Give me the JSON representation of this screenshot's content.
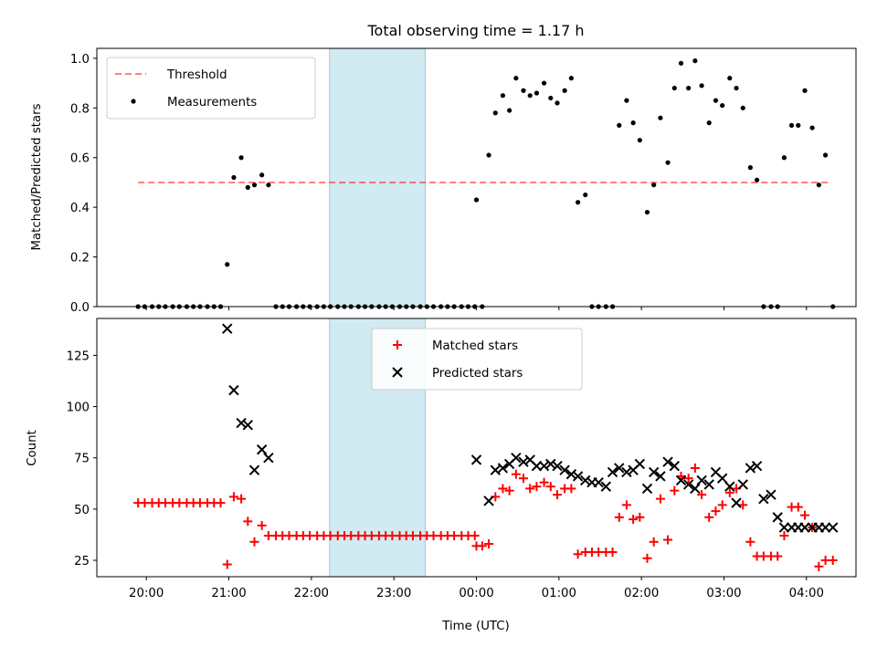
{
  "chart_data": [
    {
      "type": "scatter",
      "title": "Total observing time = 1.17 h",
      "xlabel": "",
      "ylabel": "Matched/Predicted stars",
      "xlim": [
        -0.6,
        8.6
      ],
      "ylim": [
        0,
        1.04
      ],
      "yticks": [
        0.0,
        0.2,
        0.4,
        0.6,
        0.8,
        1.0
      ],
      "ytick_labels": [
        "0.0",
        "0.2",
        "0.4",
        "0.6",
        "0.8",
        "1.0"
      ],
      "x_unit": "hours since 20:00 UTC",
      "highlight_span": {
        "x0": 2.22,
        "x1": 3.38,
        "color": "#add8e6"
      },
      "threshold": {
        "name": "Threshold",
        "y": 0.5,
        "x0": -0.1,
        "x1": 8.3,
        "color": "#ff0000"
      },
      "legend": {
        "placement": "upper left",
        "entries": [
          "Threshold",
          "Measurements"
        ]
      },
      "series": [
        {
          "name": "Measurements",
          "color": "#000000",
          "marker": "dot",
          "x": [
            -0.1,
            -0.02,
            0.07,
            0.15,
            0.23,
            0.32,
            0.4,
            0.49,
            0.57,
            0.65,
            0.74,
            0.82,
            0.9,
            0.98,
            1.06,
            1.15,
            1.23,
            1.31,
            1.4,
            1.48,
            1.57,
            1.65,
            1.73,
            1.82,
            1.9,
            1.98,
            2.07,
            2.15,
            2.23,
            2.32,
            2.4,
            2.48,
            2.57,
            2.65,
            2.73,
            2.82,
            2.9,
            2.98,
            3.07,
            3.15,
            3.23,
            3.32,
            3.4,
            3.48,
            3.57,
            3.65,
            3.73,
            3.82,
            3.9,
            3.98,
            4.0,
            4.07,
            4.15,
            4.23,
            4.32,
            4.4,
            4.48,
            4.57,
            4.65,
            4.73,
            4.82,
            4.9,
            4.98,
            5.07,
            5.15,
            5.23,
            5.32,
            5.4,
            5.48,
            5.57,
            5.65,
            5.73,
            5.82,
            5.9,
            5.98,
            6.07,
            6.15,
            6.23,
            6.32,
            6.4,
            6.48,
            6.57,
            6.65,
            6.73,
            6.82,
            6.9,
            6.98,
            7.07,
            7.15,
            7.23,
            7.32,
            7.4,
            7.48,
            7.57,
            7.65,
            7.73,
            7.82,
            7.9,
            7.98,
            8.07,
            8.15,
            8.23,
            8.32
          ],
          "y": [
            0.0,
            0.0,
            0.0,
            0.0,
            0.0,
            0.0,
            0.0,
            0.0,
            0.0,
            0.0,
            0.0,
            0.0,
            0.0,
            0.17,
            0.52,
            0.6,
            0.48,
            0.49,
            0.53,
            0.49,
            0.0,
            0.0,
            0.0,
            0.0,
            0.0,
            0.0,
            0.0,
            0.0,
            0.0,
            0.0,
            0.0,
            0.0,
            0.0,
            0.0,
            0.0,
            0.0,
            0.0,
            0.0,
            0.0,
            0.0,
            0.0,
            0.0,
            0.0,
            0.0,
            0.0,
            0.0,
            0.0,
            0.0,
            0.0,
            0.0,
            0.43,
            0.0,
            0.61,
            0.78,
            0.85,
            0.79,
            0.92,
            0.87,
            0.85,
            0.86,
            0.9,
            0.84,
            0.82,
            0.87,
            0.92,
            0.42,
            0.45,
            0.0,
            0.0,
            0.0,
            0.0,
            0.73,
            0.83,
            0.74,
            0.67,
            0.38,
            0.49,
            0.76,
            0.58,
            0.88,
            0.98,
            0.88,
            0.99,
            0.89,
            0.74,
            0.83,
            0.81,
            0.92,
            0.88,
            0.8,
            0.56,
            0.51,
            0.0,
            0.0,
            0.0,
            0.6,
            0.73,
            0.73,
            0.87,
            0.72,
            0.49,
            0.61,
            0.0
          ]
        }
      ]
    },
    {
      "type": "scatter",
      "title": "",
      "xlabel": "Time (UTC)",
      "ylabel": "Count",
      "xlim": [
        -0.6,
        8.6
      ],
      "ylim": [
        17,
        143
      ],
      "yticks": [
        25,
        50,
        75,
        100,
        125
      ],
      "ytick_labels": [
        "25",
        "50",
        "75",
        "100",
        "125"
      ],
      "xticks": [
        0,
        1,
        2,
        3,
        4,
        5,
        6,
        7,
        8
      ],
      "xtick_labels": [
        "20:00",
        "21:00",
        "22:00",
        "23:00",
        "00:00",
        "01:00",
        "02:00",
        "03:00",
        "04:00"
      ],
      "x_unit": "hours since 20:00 UTC",
      "highlight_span": {
        "x0": 2.22,
        "x1": 3.38,
        "color": "#add8e6"
      },
      "legend": {
        "placement": "upper center",
        "entries": [
          "Matched stars",
          "Predicted stars"
        ]
      },
      "series": [
        {
          "name": "Matched stars",
          "color": "#ff0000",
          "marker": "plus",
          "x": [
            -0.1,
            -0.02,
            0.07,
            0.15,
            0.23,
            0.32,
            0.4,
            0.49,
            0.57,
            0.65,
            0.74,
            0.82,
            0.9,
            0.98,
            1.06,
            1.15,
            1.23,
            1.31,
            1.4,
            1.48,
            1.57,
            1.65,
            1.73,
            1.82,
            1.9,
            1.98,
            2.07,
            2.15,
            2.23,
            2.32,
            2.4,
            2.48,
            2.57,
            2.65,
            2.73,
            2.82,
            2.9,
            2.98,
            3.07,
            3.15,
            3.23,
            3.32,
            3.4,
            3.48,
            3.57,
            3.65,
            3.73,
            3.82,
            3.9,
            3.98,
            4.0,
            4.07,
            4.15,
            4.23,
            4.32,
            4.4,
            4.48,
            4.57,
            4.65,
            4.73,
            4.82,
            4.9,
            4.98,
            5.07,
            5.15,
            5.23,
            5.32,
            5.4,
            5.48,
            5.57,
            5.65,
            5.73,
            5.82,
            5.9,
            5.98,
            6.07,
            6.15,
            6.23,
            6.32,
            6.4,
            6.48,
            6.57,
            6.65,
            6.73,
            6.82,
            6.9,
            6.98,
            7.07,
            7.15,
            7.23,
            7.32,
            7.4,
            7.48,
            7.57,
            7.65,
            7.73,
            7.82,
            7.9,
            7.98,
            8.07,
            8.15,
            8.23,
            8.32
          ],
          "y": [
            53,
            53,
            53,
            53,
            53,
            53,
            53,
            53,
            53,
            53,
            53,
            53,
            53,
            23,
            56,
            55,
            44,
            34,
            42,
            37,
            37,
            37,
            37,
            37,
            37,
            37,
            37,
            37,
            37,
            37,
            37,
            37,
            37,
            37,
            37,
            37,
            37,
            37,
            37,
            37,
            37,
            37,
            37,
            37,
            37,
            37,
            37,
            37,
            37,
            37,
            32,
            32,
            33,
            56,
            60,
            59,
            67,
            65,
            60,
            61,
            63,
            61,
            57,
            60,
            60,
            28,
            29,
            29,
            29,
            29,
            29,
            46,
            52,
            45,
            46,
            26,
            34,
            55,
            35,
            59,
            66,
            65,
            70,
            57,
            46,
            49,
            52,
            58,
            60,
            52,
            34,
            27,
            27,
            27,
            27,
            37,
            51,
            51,
            47,
            41,
            22,
            25,
            25
          ]
        },
        {
          "name": "Predicted stars",
          "color": "#000000",
          "marker": "x",
          "x": [
            0.98,
            1.06,
            1.15,
            1.23,
            1.31,
            1.4,
            1.48,
            4.0,
            4.15,
            4.23,
            4.32,
            4.4,
            4.48,
            4.57,
            4.65,
            4.73,
            4.82,
            4.9,
            4.98,
            5.07,
            5.15,
            5.23,
            5.32,
            5.4,
            5.48,
            5.57,
            5.65,
            5.73,
            5.82,
            5.9,
            5.98,
            6.07,
            6.15,
            6.23,
            6.32,
            6.4,
            6.48,
            6.57,
            6.65,
            6.73,
            6.82,
            6.9,
            6.98,
            7.07,
            7.15,
            7.23,
            7.32,
            7.4,
            7.48,
            7.57,
            7.65,
            7.73,
            7.82,
            7.9,
            7.98,
            8.07,
            8.15,
            8.23,
            8.32
          ],
          "y": [
            138,
            108,
            92,
            91,
            69,
            79,
            75,
            74,
            54,
            69,
            70,
            72,
            75,
            73,
            74,
            71,
            71,
            72,
            71,
            69,
            67,
            66,
            64,
            63,
            63,
            61,
            68,
            70,
            68,
            69,
            72,
            60,
            68,
            66,
            73,
            71,
            64,
            62,
            60,
            64,
            62,
            68,
            65,
            61,
            53,
            62,
            70,
            71,
            55,
            57,
            46,
            41,
            41,
            41,
            41,
            41,
            41,
            41,
            41
          ]
        }
      ]
    }
  ]
}
